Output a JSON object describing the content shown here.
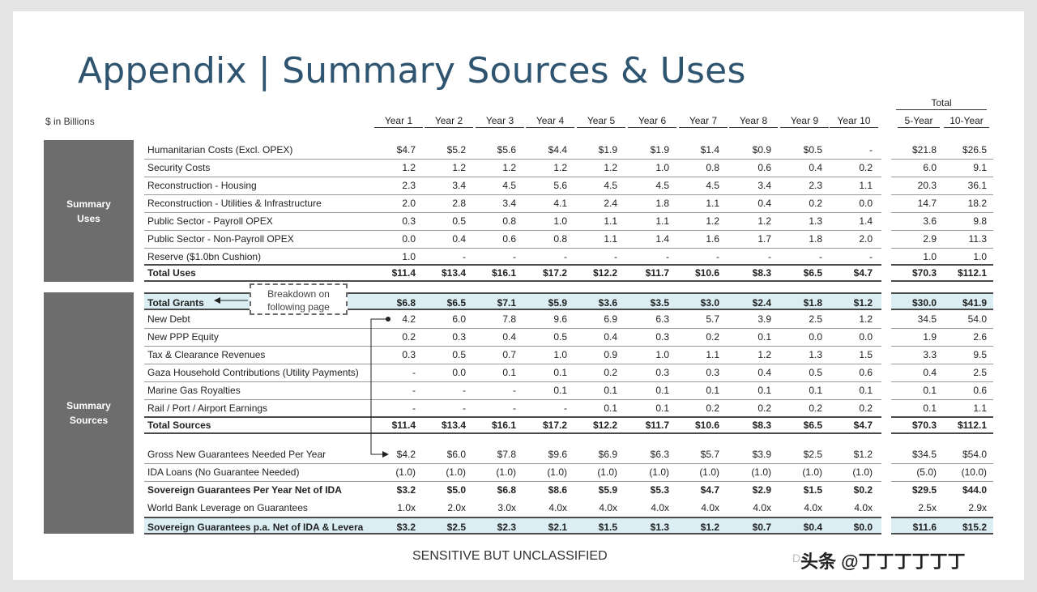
{
  "title": "Appendix | Summary Sources & Uses",
  "units": "$ in Billions",
  "total_group": "Total",
  "columns": [
    "Year 1",
    "Year 2",
    "Year 3",
    "Year 4",
    "Year 5",
    "Year 6",
    "Year 7",
    "Year 8",
    "Year 9",
    "Year 10",
    "5-Year",
    "10-Year"
  ],
  "sections": {
    "uses": "Summary\nUses",
    "sources": "Summary\nSources"
  },
  "callout": "Breakdown on\nfollowing page",
  "rows": [
    {
      "label": "Humanitarian Costs (Excl. OPEX)",
      "values": [
        "$4.7",
        "$5.2",
        "$5.6",
        "$4.4",
        "$1.9",
        "$1.9",
        "$1.4",
        "$0.9",
        "$0.5",
        "-",
        "$21.8",
        "$26.5"
      ]
    },
    {
      "label": "Security Costs",
      "values": [
        "1.2",
        "1.2",
        "1.2",
        "1.2",
        "1.2",
        "1.0",
        "0.8",
        "0.6",
        "0.4",
        "0.2",
        "6.0",
        "9.1"
      ]
    },
    {
      "label": "Reconstruction - Housing",
      "values": [
        "2.3",
        "3.4",
        "4.5",
        "5.6",
        "4.5",
        "4.5",
        "4.5",
        "3.4",
        "2.3",
        "1.1",
        "20.3",
        "36.1"
      ]
    },
    {
      "label": "Reconstruction - Utilities & Infrastructure",
      "values": [
        "2.0",
        "2.8",
        "3.4",
        "4.1",
        "2.4",
        "1.8",
        "1.1",
        "0.4",
        "0.2",
        "0.0",
        "14.7",
        "18.2"
      ]
    },
    {
      "label": "Public Sector - Payroll OPEX",
      "values": [
        "0.3",
        "0.5",
        "0.8",
        "1.0",
        "1.1",
        "1.1",
        "1.2",
        "1.2",
        "1.3",
        "1.4",
        "3.6",
        "9.8"
      ]
    },
    {
      "label": "Public Sector - Non-Payroll OPEX",
      "values": [
        "0.0",
        "0.4",
        "0.6",
        "0.8",
        "1.1",
        "1.4",
        "1.6",
        "1.7",
        "1.8",
        "2.0",
        "2.9",
        "11.3"
      ]
    },
    {
      "label": "Reserve ($1.0bn Cushion)",
      "values": [
        "1.0",
        "-",
        "-",
        "-",
        "-",
        "-",
        "-",
        "-",
        "-",
        "-",
        "1.0",
        "1.0"
      ]
    },
    {
      "label": "Total Uses",
      "values": [
        "$11.4",
        "$13.4",
        "$16.1",
        "$17.2",
        "$12.2",
        "$11.7",
        "$10.6",
        "$8.3",
        "$6.5",
        "$4.7",
        "$70.3",
        "$112.1"
      ]
    },
    {
      "label": "Total Grants",
      "values": [
        "$6.8",
        "$6.5",
        "$7.1",
        "$5.9",
        "$3.6",
        "$3.5",
        "$3.0",
        "$2.4",
        "$1.8",
        "$1.2",
        "$30.0",
        "$41.9"
      ]
    },
    {
      "label": "New Debt",
      "values": [
        "4.2",
        "6.0",
        "7.8",
        "9.6",
        "6.9",
        "6.3",
        "5.7",
        "3.9",
        "2.5",
        "1.2",
        "34.5",
        "54.0"
      ]
    },
    {
      "label": "New PPP Equity",
      "values": [
        "0.2",
        "0.3",
        "0.4",
        "0.5",
        "0.4",
        "0.3",
        "0.2",
        "0.1",
        "0.0",
        "0.0",
        "1.9",
        "2.6"
      ]
    },
    {
      "label": "Tax & Clearance Revenues",
      "values": [
        "0.3",
        "0.5",
        "0.7",
        "1.0",
        "0.9",
        "1.0",
        "1.1",
        "1.2",
        "1.3",
        "1.5",
        "3.3",
        "9.5"
      ]
    },
    {
      "label": "Gaza Household Contributions (Utility Payments)",
      "values": [
        "-",
        "0.0",
        "0.1",
        "0.1",
        "0.2",
        "0.3",
        "0.3",
        "0.4",
        "0.5",
        "0.6",
        "0.4",
        "2.5"
      ]
    },
    {
      "label": "Marine Gas Royalties",
      "values": [
        "-",
        "-",
        "-",
        "0.1",
        "0.1",
        "0.1",
        "0.1",
        "0.1",
        "0.1",
        "0.1",
        "0.1",
        "0.6"
      ]
    },
    {
      "label": "Rail / Port / Airport Earnings",
      "values": [
        "-",
        "-",
        "-",
        "-",
        "0.1",
        "0.1",
        "0.2",
        "0.2",
        "0.2",
        "0.2",
        "0.1",
        "1.1"
      ]
    },
    {
      "label": "Total Sources",
      "values": [
        "$11.4",
        "$13.4",
        "$16.1",
        "$17.2",
        "$12.2",
        "$11.7",
        "$10.6",
        "$8.3",
        "$6.5",
        "$4.7",
        "$70.3",
        "$112.1"
      ]
    },
    {
      "label": "Gross New Guarantees Needed Per Year",
      "values": [
        "$4.2",
        "$6.0",
        "$7.8",
        "$9.6",
        "$6.9",
        "$6.3",
        "$5.7",
        "$3.9",
        "$2.5",
        "$1.2",
        "$34.5",
        "$54.0"
      ]
    },
    {
      "label": "IDA Loans (No Guarantee Needed)",
      "values": [
        "(1.0)",
        "(1.0)",
        "(1.0)",
        "(1.0)",
        "(1.0)",
        "(1.0)",
        "(1.0)",
        "(1.0)",
        "(1.0)",
        "(1.0)",
        "(5.0)",
        "(10.0)"
      ]
    },
    {
      "label": "Sovereign Guarantees Per Year Net of IDA",
      "values": [
        "$3.2",
        "$5.0",
        "$6.8",
        "$8.6",
        "$5.9",
        "$5.3",
        "$4.7",
        "$2.9",
        "$1.5",
        "$0.2",
        "$29.5",
        "$44.0"
      ]
    },
    {
      "label": "World Bank Leverage on Guarantees",
      "values": [
        "1.0x",
        "2.0x",
        "3.0x",
        "4.0x",
        "4.0x",
        "4.0x",
        "4.0x",
        "4.0x",
        "4.0x",
        "4.0x",
        "2.5x",
        "2.9x"
      ]
    },
    {
      "label": "Sovereign Guarantees p.a. Net of IDA & Levera",
      "values": [
        "$3.2",
        "$2.5",
        "$2.3",
        "$2.1",
        "$1.5",
        "$1.3",
        "$1.2",
        "$0.7",
        "$0.4",
        "$0.0",
        "$11.6",
        "$15.2"
      ]
    }
  ],
  "footer": "SENSITIVE BUT UNCLASSIFIED",
  "watermark": "头条 @丁丁丁丁丁丁",
  "watermark_partial": "D"
}
